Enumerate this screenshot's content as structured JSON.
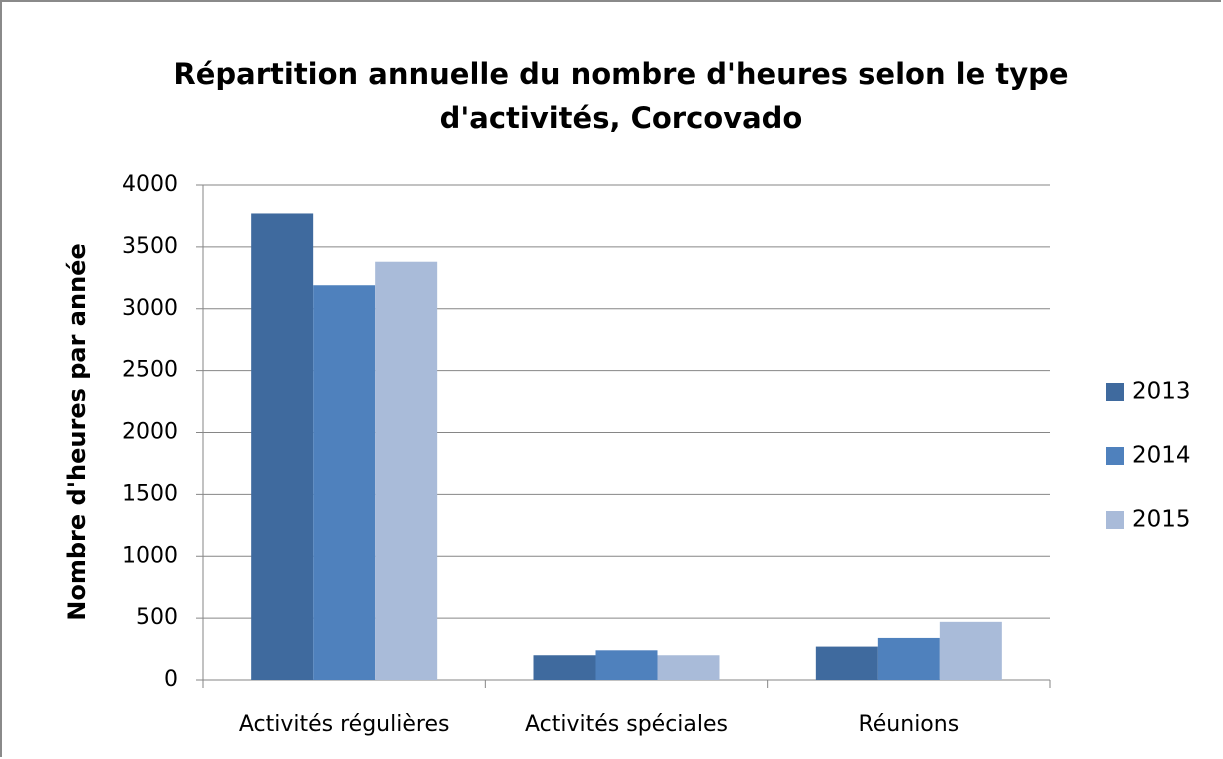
{
  "chart_data": {
    "type": "bar",
    "title": "Répartition annuelle du nombre d'heures selon le type d'activités, Corcovado",
    "ylabel": "Nombre d'heures par année",
    "categories": [
      "Activités régulières",
      "Activités spéciales",
      "Réunions"
    ],
    "series": [
      {
        "name": "2013",
        "color": "#3f6a9e",
        "values": [
          3770,
          200,
          270
        ]
      },
      {
        "name": "2014",
        "color": "#4f81bd",
        "values": [
          3190,
          240,
          340
        ]
      },
      {
        "name": "2015",
        "color": "#a9bbd9",
        "values": [
          3380,
          200,
          470
        ]
      }
    ],
    "ylim": [
      0,
      4000
    ],
    "yticks": [
      0,
      500,
      1000,
      1500,
      2000,
      2500,
      3000,
      3500,
      4000
    ],
    "grid": true,
    "legend": "right"
  }
}
